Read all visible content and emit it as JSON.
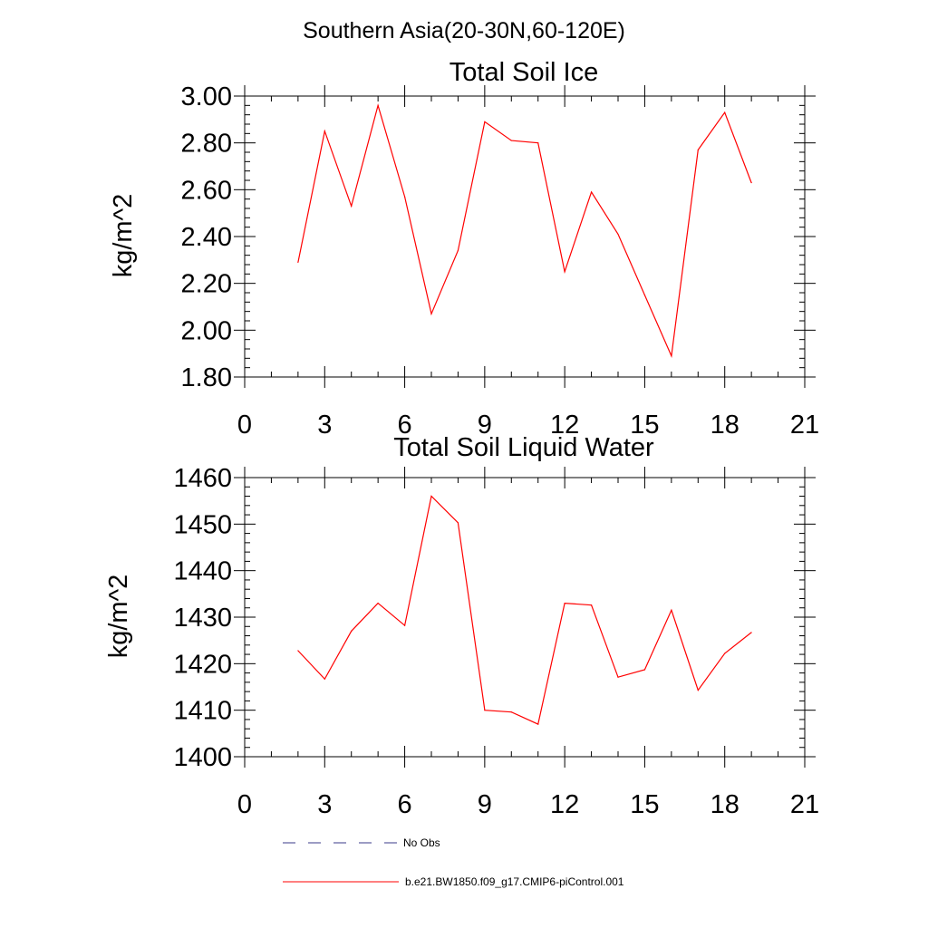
{
  "figure": {
    "suptitle": "Southern Asia(20-30N,60-120E)",
    "line_color": "#ff0000",
    "obs_color": "#3a3a8a"
  },
  "chart_data": [
    {
      "type": "line",
      "title": "Total Soil Ice",
      "xlabel": "",
      "ylabel": "kg/m^2",
      "xlim": [
        0,
        21
      ],
      "ylim": [
        1.8,
        3.0
      ],
      "x_ticks": [
        "0",
        "3",
        "6",
        "9",
        "12",
        "15",
        "18",
        "21"
      ],
      "y_ticks": [
        "1.80",
        "2.00",
        "2.20",
        "2.40",
        "2.60",
        "2.80",
        "3.00"
      ],
      "series": [
        {
          "name": "b.e21.BW1850.f09_g17.CMIP6-piControl.001",
          "x": [
            2,
            3,
            4,
            5,
            6,
            7,
            8,
            9,
            10,
            11,
            12,
            13,
            14,
            15,
            16,
            17,
            18,
            19
          ],
          "values": [
            2.29,
            2.85,
            2.53,
            2.96,
            2.57,
            2.07,
            2.34,
            2.89,
            2.81,
            2.8,
            2.25,
            2.59,
            2.41,
            2.15,
            1.89,
            2.77,
            2.93,
            2.63
          ]
        }
      ]
    },
    {
      "type": "line",
      "title": "Total Soil Liquid Water",
      "xlabel": "",
      "ylabel": "kg/m^2",
      "xlim": [
        0,
        21
      ],
      "ylim": [
        1400,
        1460
      ],
      "x_ticks": [
        "0",
        "3",
        "6",
        "9",
        "12",
        "15",
        "18",
        "21"
      ],
      "y_ticks": [
        "1400",
        "1410",
        "1420",
        "1430",
        "1440",
        "1450",
        "1460"
      ],
      "series": [
        {
          "name": "b.e21.BW1850.f09_g17.CMIP6-piControl.001",
          "x": [
            2,
            3,
            4,
            5,
            6,
            7,
            8,
            9,
            10,
            11,
            12,
            13,
            14,
            15,
            16,
            17,
            18,
            19
          ],
          "values": [
            1422.8,
            1416.7,
            1427.0,
            1433.0,
            1428.2,
            1456.0,
            1450.3,
            1410.0,
            1409.6,
            1407.0,
            1433.0,
            1432.6,
            1417.1,
            1418.7,
            1431.5,
            1414.3,
            1422.2,
            1426.7
          ]
        }
      ]
    }
  ],
  "legend": {
    "obs_label": "No Obs",
    "model_label": "b.e21.BW1850.f09_g17.CMIP6-piControl.001"
  }
}
